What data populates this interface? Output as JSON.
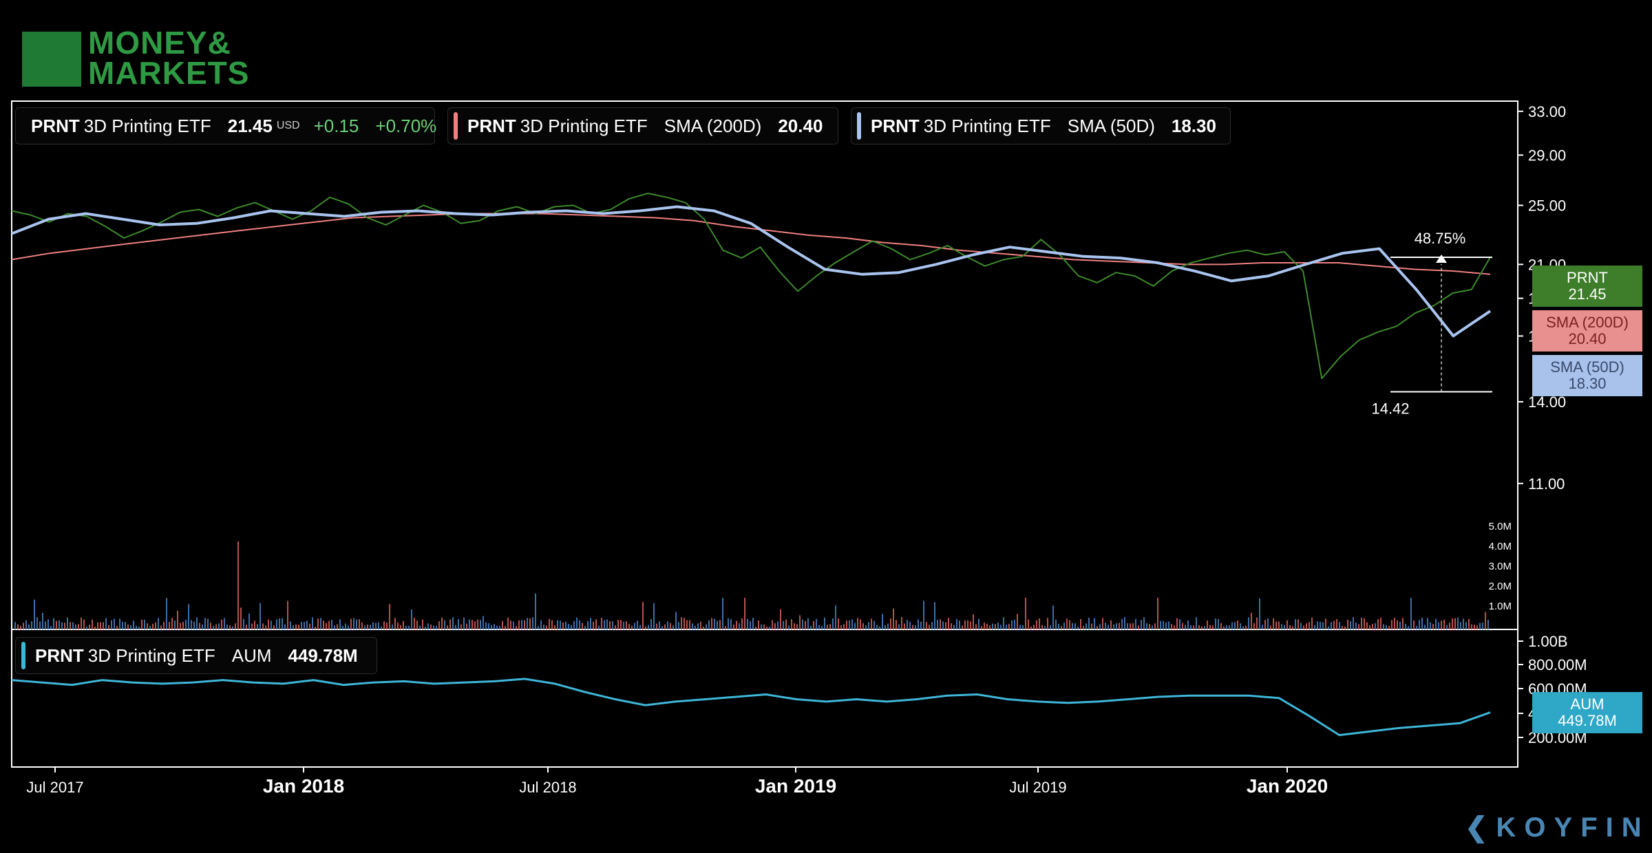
{
  "brand": {
    "logo_line1": "MONEY&",
    "logo_line2": "MARKETS",
    "logo_color": "#1f7a34",
    "footer": "KOYFIN"
  },
  "legends": [
    {
      "ticker": "PRNT",
      "name": "3D Printing ETF",
      "value": "21.45",
      "currency": "USD",
      "change": "+0.15",
      "change_pct": "+0.70%",
      "color": "#3e8a2c"
    },
    {
      "ticker": "PRNT",
      "name": "3D Printing ETF",
      "label": "SMA (200D)",
      "value": "20.40",
      "color": "#f08080"
    },
    {
      "ticker": "PRNT",
      "name": "3D Printing ETF",
      "label": "SMA (50D)",
      "value": "18.30",
      "color": "#aac4f0"
    }
  ],
  "aum_legend": {
    "ticker": "PRNT",
    "name": "3D Printing ETF",
    "label": "AUM",
    "value": "449.78M",
    "color": "#3fb6d8"
  },
  "price_tags": [
    {
      "title": "PRNT",
      "value": "21.45",
      "bg": "#3e7d2a",
      "fg": "#ffffff"
    },
    {
      "title": "SMA (200D)",
      "value": "20.40",
      "bg": "#e89090",
      "fg": "#7a2020"
    },
    {
      "title": "SMA (50D)",
      "value": "18.30",
      "bg": "#a8c2ec",
      "fg": "#3a4a6a"
    },
    {
      "title": "AUM",
      "value": "449.78M",
      "bg": "#2fa8c8",
      "fg": "#ffffff"
    }
  ],
  "chart_data": {
    "type": "line",
    "x_ticks": [
      {
        "label": "Jul 2017",
        "bold": false
      },
      {
        "label": "Jan 2018",
        "bold": true
      },
      {
        "label": "Jul 2018",
        "bold": false
      },
      {
        "label": "Jan 2019",
        "bold": true
      },
      {
        "label": "Jul 2019",
        "bold": false
      },
      {
        "label": "Jan 2020",
        "bold": true
      }
    ],
    "price_axis": {
      "scale": "log",
      "ticks": [
        "33.00",
        "29.00",
        "25.00",
        "21.00",
        "19.00",
        "17.00",
        "14.00",
        "11.00"
      ]
    },
    "volume_axis": {
      "ticks": [
        "5.0M",
        "4.0M",
        "3.0M",
        "2.0M",
        "1.0M"
      ]
    },
    "aum_axis": {
      "ticks": [
        "1.00B",
        "800.00M",
        "600.00M",
        "400.00M",
        "200.00M"
      ]
    },
    "annotation": {
      "change_label": "48.75%",
      "low_label": "14.42",
      "low": 14.42,
      "high": 21.45
    },
    "series": [
      {
        "name": "PRNT",
        "color": "#3e8a2c",
        "values": [
          24.6,
          24.3,
          23.8,
          24.4,
          24.2,
          23.5,
          22.7,
          23.2,
          23.8,
          24.5,
          24.7,
          24.2,
          24.8,
          25.2,
          24.6,
          24.0,
          24.6,
          25.6,
          25.1,
          24.1,
          23.6,
          24.3,
          25.0,
          24.5,
          23.7,
          23.9,
          24.6,
          24.9,
          24.4,
          24.9,
          25.0,
          24.4,
          24.7,
          25.5,
          25.9,
          25.6,
          25.2,
          24.0,
          21.9,
          21.4,
          22.1,
          20.6,
          19.4,
          20.3,
          21.1,
          21.8,
          22.5,
          22.0,
          21.3,
          21.7,
          22.2,
          21.5,
          20.9,
          21.3,
          21.5,
          22.6,
          21.6,
          20.3,
          19.9,
          20.5,
          20.3,
          19.7,
          20.6,
          21.1,
          21.4,
          21.7,
          21.9,
          21.6,
          21.8,
          20.6,
          15.0,
          16.0,
          16.8,
          17.2,
          17.5,
          18.2,
          18.6,
          19.3,
          19.5,
          21.45
        ]
      },
      {
        "name": "SMA (200D)",
        "color": "#f08080",
        "values": [
          21.3,
          21.7,
          22.0,
          22.3,
          22.6,
          22.9,
          23.2,
          23.5,
          23.8,
          24.1,
          24.2,
          24.3,
          24.4,
          24.4,
          24.4,
          24.3,
          24.2,
          24.1,
          23.9,
          23.5,
          23.2,
          22.9,
          22.7,
          22.4,
          22.2,
          21.9,
          21.7,
          21.5,
          21.3,
          21.2,
          21.1,
          21.0,
          21.0,
          21.1,
          21.1,
          21.1,
          20.9,
          20.7,
          20.6,
          20.4
        ]
      },
      {
        "name": "SMA (50D)",
        "color": "#aac4f0",
        "values": [
          23.0,
          24.0,
          24.4,
          24.0,
          23.6,
          23.7,
          24.1,
          24.6,
          24.4,
          24.2,
          24.5,
          24.6,
          24.4,
          24.3,
          24.5,
          24.6,
          24.4,
          24.6,
          24.9,
          24.6,
          23.7,
          22.1,
          20.7,
          20.4,
          20.5,
          21.0,
          21.6,
          22.1,
          21.8,
          21.5,
          21.4,
          21.1,
          20.6,
          20.0,
          20.3,
          21.0,
          21.7,
          22.0,
          19.5,
          17.0,
          18.3
        ]
      },
      {
        "name": "AUM",
        "color": "#3fb6d8",
        "values": [
          720,
          700,
          680,
          720,
          700,
          690,
          700,
          720,
          700,
          690,
          720,
          680,
          700,
          710,
          690,
          700,
          710,
          730,
          690,
          620,
          560,
          510,
          540,
          560,
          580,
          600,
          560,
          540,
          560,
          540,
          560,
          590,
          600,
          560,
          540,
          530,
          540,
          560,
          580,
          590,
          590,
          590,
          570,
          420,
          260,
          290,
          320,
          340,
          360,
          449.78
        ]
      }
    ]
  }
}
